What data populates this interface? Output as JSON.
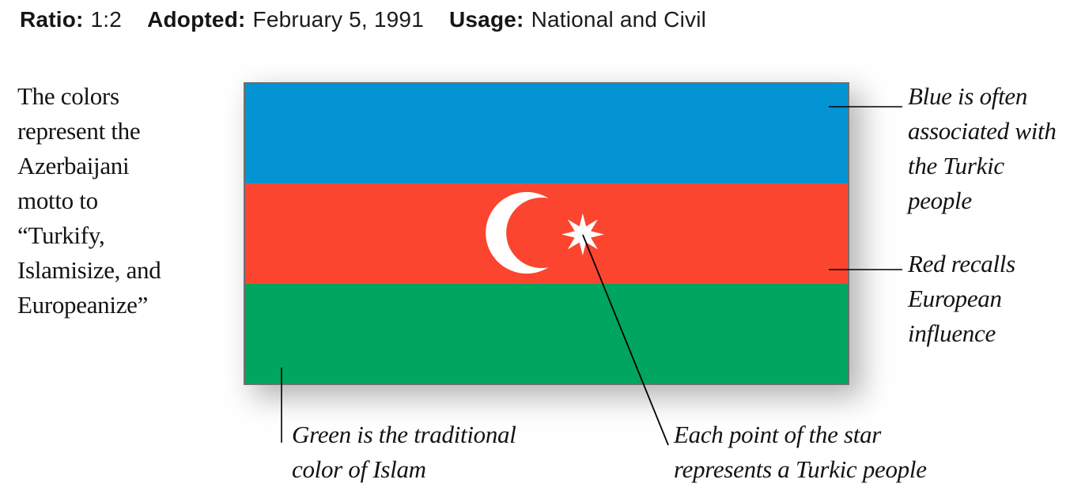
{
  "header": {
    "items": [
      {
        "label": "Ratio:",
        "value": "1:2"
      },
      {
        "label": "Adopted:",
        "value": "February 5, 1991"
      },
      {
        "label": "Usage:",
        "value": "National and Civil"
      }
    ]
  },
  "left_note": {
    "lines": [
      "The colors",
      "represent the",
      "Azerbaijani",
      "motto to",
      "“Turkify,",
      "Islamisize, and",
      "Europeanize”"
    ]
  },
  "flag": {
    "name": "Flag of Azerbaijan",
    "colors": {
      "blue": "#0493d3",
      "red": "#fb452e",
      "green": "#00a55f",
      "emblem": "#ffffff",
      "border": "#6f6f6f"
    }
  },
  "callouts": {
    "blue": {
      "lines": [
        "Blue is often",
        "associated with",
        "the Turkic",
        "people"
      ]
    },
    "red": {
      "lines": [
        "Red recalls",
        "European",
        "influence"
      ]
    },
    "green": {
      "lines": [
        "Green is the traditional",
        "color of Islam"
      ]
    },
    "star": {
      "lines": [
        "Each point of the star",
        "represents a Turkic people"
      ]
    }
  }
}
